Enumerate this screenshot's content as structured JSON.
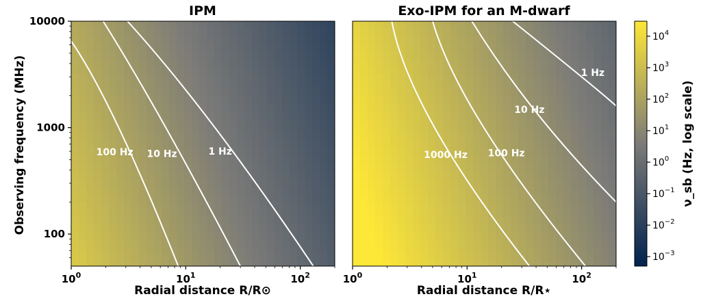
{
  "chart_data": [
    {
      "type": "heatmap",
      "title": "IPM",
      "xlabel": "Radial distance R/R⊙",
      "ylabel": "Observing frequency (MHz)",
      "x_scale": "log",
      "y_scale": "log",
      "xlim": [
        1,
        200
      ],
      "ylim": [
        50,
        10000
      ],
      "x_ticks": [
        {
          "base": "10",
          "exp": "0"
        },
        {
          "base": "10",
          "exp": "1"
        },
        {
          "base": "10",
          "exp": "2"
        }
      ],
      "y_ticks": [
        "10000",
        "1000",
        "100"
      ],
      "contours": [
        {
          "label": "1 Hz",
          "level": 1,
          "points": [
            [
              3.1,
              10000
            ],
            [
              18,
              1000
            ],
            [
              130,
              50
            ]
          ],
          "label_at": [
            20,
            600
          ]
        },
        {
          "label": "10 Hz",
          "level": 10,
          "points": [
            [
              1.9,
              10000
            ],
            [
              6.7,
              1000
            ],
            [
              30,
              50
            ]
          ],
          "label_at": [
            6.2,
            570
          ]
        },
        {
          "label": "100 Hz",
          "level": 100,
          "points": [
            [
              1,
              6500
            ],
            [
              2.6,
              1000
            ],
            [
              8.6,
              50
            ]
          ],
          "label_at": [
            2.4,
            590
          ]
        }
      ]
    },
    {
      "type": "heatmap",
      "title": "Exo-IPM for an M-dwarf",
      "xlabel": "Radial distance R/R⋆",
      "x_scale": "log",
      "y_scale": "log",
      "xlim": [
        1,
        200
      ],
      "ylim": [
        50,
        10000
      ],
      "x_ticks": [
        {
          "base": "10",
          "exp": "0"
        },
        {
          "base": "10",
          "exp": "1"
        },
        {
          "base": "10",
          "exp": "2"
        }
      ],
      "contours": [
        {
          "label": "1 Hz",
          "level": 1,
          "points": [
            [
              25,
              10000
            ],
            [
              100,
              3000
            ],
            [
              200,
              1600
            ]
          ],
          "label_at": [
            125,
            3300
          ]
        },
        {
          "label": "10 Hz",
          "level": 10,
          "points": [
            [
              11,
              10000
            ],
            [
              40,
              1400
            ],
            [
              200,
              200
            ]
          ],
          "label_at": [
            35,
            1480
          ]
        },
        {
          "label": "100 Hz",
          "level": 100,
          "points": [
            [
              5,
              10000
            ],
            [
              14,
              1000
            ],
            [
              108,
              50
            ]
          ],
          "label_at": [
            22,
            580
          ]
        },
        {
          "label": "1000 Hz",
          "level": 1000,
          "points": [
            [
              2.2,
              10000
            ],
            [
              5.2,
              1000
            ],
            [
              35,
              50
            ]
          ],
          "label_at": [
            6.5,
            560
          ]
        }
      ],
      "colorbar": {
        "label": "ν_sb (Hz, log scale)",
        "scale": "log",
        "range": [
          0.0005,
          30000
        ],
        "colors": [
          "#00224e",
          "#7c7b78",
          "#fde737"
        ],
        "ticks": [
          {
            "base": "10",
            "exp": "4"
          },
          {
            "base": "10",
            "exp": "3"
          },
          {
            "base": "10",
            "exp": "2"
          },
          {
            "base": "10",
            "exp": "1"
          },
          {
            "base": "10",
            "exp": "0"
          },
          {
            "base": "10",
            "exp": "−1"
          },
          {
            "base": "10",
            "exp": "−2"
          },
          {
            "base": "10",
            "exp": "−3"
          }
        ]
      }
    }
  ]
}
